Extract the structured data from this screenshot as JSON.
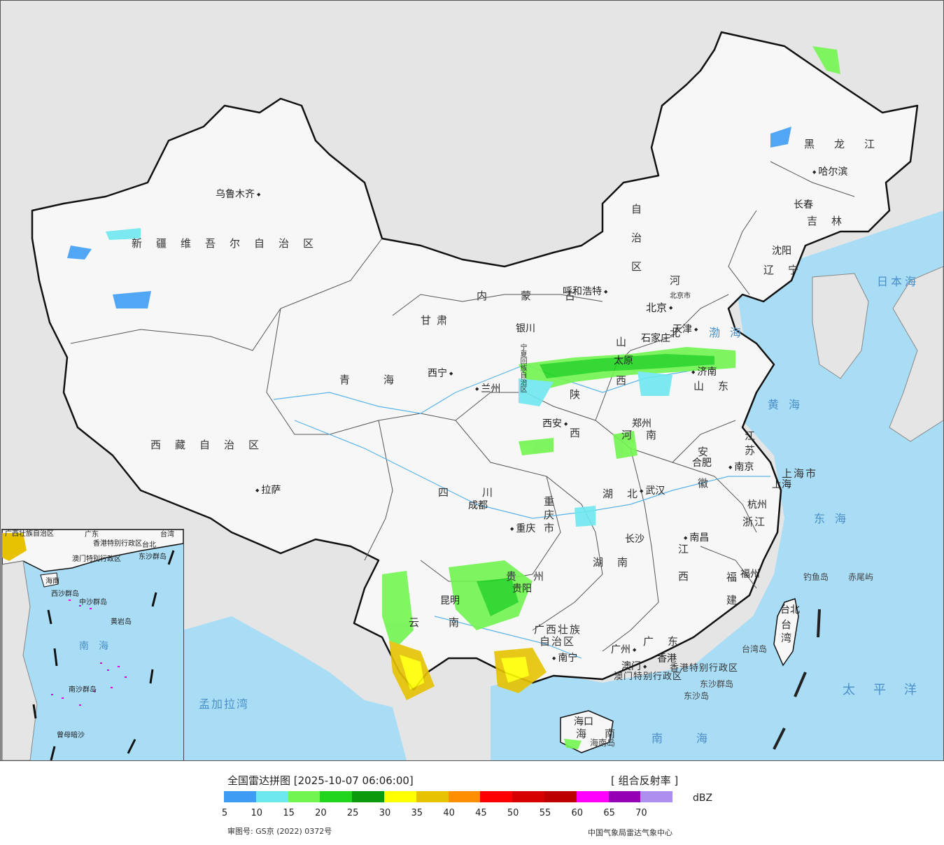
{
  "map": {
    "colors": {
      "sea": "#a9dcf5",
      "land": "#f7f7f7",
      "foreign": "#e5e5e5",
      "border": "#111111"
    },
    "regions": [
      {
        "id": "xinjiang",
        "text": "新疆维吾尔自治区"
      },
      {
        "id": "xizang",
        "text": "西藏自治区"
      },
      {
        "id": "qinghai",
        "text": "青海"
      },
      {
        "id": "gansu",
        "text": "甘肃"
      },
      {
        "id": "neimenggu",
        "text": "内蒙古"
      },
      {
        "id": "neimenggu-v",
        "text": "自治区"
      },
      {
        "id": "heilongjiang",
        "text": "黑龙江"
      },
      {
        "id": "jilin",
        "text": "吉林"
      },
      {
        "id": "liaoning",
        "text": "辽宁"
      },
      {
        "id": "hebei",
        "text": "河北"
      },
      {
        "id": "shanxi",
        "text": "山西"
      },
      {
        "id": "shandong",
        "text": "山东"
      },
      {
        "id": "shaanxi",
        "text": "陕西"
      },
      {
        "id": "henan",
        "text": "河南"
      },
      {
        "id": "ningxia",
        "text": "宁夏回族自治区"
      },
      {
        "id": "sichuan",
        "text": "四川"
      },
      {
        "id": "chongqing",
        "text": "重庆市"
      },
      {
        "id": "hubei",
        "text": "湖北"
      },
      {
        "id": "hunan",
        "text": "湖南"
      },
      {
        "id": "anhui",
        "text": "安徽"
      },
      {
        "id": "jiangsu",
        "text": "江苏"
      },
      {
        "id": "zhejiang",
        "text": "浙江"
      },
      {
        "id": "jiangxi",
        "text": "江西"
      },
      {
        "id": "fujian",
        "text": "福建"
      },
      {
        "id": "guizhou",
        "text": "贵州"
      },
      {
        "id": "yunnan",
        "text": "云南"
      },
      {
        "id": "guangxi1",
        "text": "广西壮族"
      },
      {
        "id": "guangxi2",
        "text": "自治区"
      },
      {
        "id": "guangdong",
        "text": "广东"
      },
      {
        "id": "hainan",
        "text": "海南"
      },
      {
        "id": "taiwan",
        "text": "台湾"
      },
      {
        "id": "shanghai",
        "text": "上海市"
      },
      {
        "id": "hk",
        "text": "香港特别行政区"
      },
      {
        "id": "macao",
        "text": "澳门特别行政区"
      }
    ],
    "cities": [
      {
        "id": "urumqi",
        "text": "乌鲁木齐"
      },
      {
        "id": "lhasa",
        "text": "拉萨"
      },
      {
        "id": "xining",
        "text": "西宁"
      },
      {
        "id": "lanzhou",
        "text": "兰州"
      },
      {
        "id": "yinchuan",
        "text": "银川"
      },
      {
        "id": "hohhot",
        "text": "呼和浩特"
      },
      {
        "id": "beijing",
        "text": "北京"
      },
      {
        "id": "beijingshi",
        "text": "北京市"
      },
      {
        "id": "tianjin",
        "text": "天津"
      },
      {
        "id": "shijiazhuang",
        "text": "石家庄"
      },
      {
        "id": "taiyuan",
        "text": "太原"
      },
      {
        "id": "jinan",
        "text": "济南"
      },
      {
        "id": "zhengzhou",
        "text": "郑州"
      },
      {
        "id": "xian",
        "text": "西安"
      },
      {
        "id": "hefei",
        "text": "合肥"
      },
      {
        "id": "nanjing",
        "text": "南京"
      },
      {
        "id": "shanghai-c",
        "text": "上海"
      },
      {
        "id": "hangzhou",
        "text": "杭州"
      },
      {
        "id": "wuhan",
        "text": "武汉"
      },
      {
        "id": "chengdu",
        "text": "成都"
      },
      {
        "id": "chongqing-c",
        "text": "重庆"
      },
      {
        "id": "changsha",
        "text": "长沙"
      },
      {
        "id": "nanchang",
        "text": "南昌"
      },
      {
        "id": "fuzhou",
        "text": "福州"
      },
      {
        "id": "guiyang",
        "text": "贵阳"
      },
      {
        "id": "kunming",
        "text": "昆明"
      },
      {
        "id": "nanning",
        "text": "南宁"
      },
      {
        "id": "guangzhou",
        "text": "广州"
      },
      {
        "id": "hongkong",
        "text": "香港"
      },
      {
        "id": "aomen",
        "text": "澳门"
      },
      {
        "id": "haikou",
        "text": "海口"
      },
      {
        "id": "taibei",
        "text": "台北"
      },
      {
        "id": "shenyang",
        "text": "沈阳"
      },
      {
        "id": "changchun",
        "text": "长春"
      },
      {
        "id": "harbin",
        "text": "哈尔滨"
      }
    ],
    "seas": [
      {
        "id": "bohai",
        "text": "渤海"
      },
      {
        "id": "huanghai",
        "text": "黄海"
      },
      {
        "id": "donghai",
        "text": "东海"
      },
      {
        "id": "nanhai",
        "text": "南海"
      },
      {
        "id": "taipingyang",
        "text": "太平洋"
      },
      {
        "id": "ribenhai",
        "text": "日本海"
      },
      {
        "id": "mengjiala",
        "text": "孟加拉湾"
      }
    ],
    "islands": [
      {
        "id": "diaoyu",
        "text": "钓鱼岛"
      },
      {
        "id": "chiwei",
        "text": "赤尾屿"
      },
      {
        "id": "dongsha-q",
        "text": "东沙群岛"
      },
      {
        "id": "dongsha-d",
        "text": "东沙岛"
      },
      {
        "id": "taiwan-d",
        "text": "台湾岛"
      },
      {
        "id": "hainan-d",
        "text": "海南岛"
      }
    ],
    "inset": [
      {
        "id": "i-guangxi",
        "text": "广西壮族自治区"
      },
      {
        "id": "i-guangdong",
        "text": "广东"
      },
      {
        "id": "i-hk",
        "text": "香港特别行政区"
      },
      {
        "id": "i-macao",
        "text": "澳门特别行政区"
      },
      {
        "id": "i-dongsha",
        "text": "东沙群岛"
      },
      {
        "id": "i-hainan",
        "text": "海南"
      },
      {
        "id": "i-xisha",
        "text": "西沙群岛"
      },
      {
        "id": "i-zhongsha",
        "text": "中沙群岛"
      },
      {
        "id": "i-huangyan",
        "text": "黄岩岛"
      },
      {
        "id": "i-nanhai",
        "text": "南海"
      },
      {
        "id": "i-nansha",
        "text": "南沙群岛"
      },
      {
        "id": "i-zengmu",
        "text": "曾母暗沙"
      },
      {
        "id": "i-taiwan",
        "text": "台湾"
      },
      {
        "id": "i-taibei",
        "text": "台北"
      }
    ]
  },
  "legend": {
    "title": "全国雷达拼图 [2025-10-07 06:06:00]",
    "product": "[ 组合反射率 ]",
    "unit": "dBZ",
    "swatches": [
      "#3e9cf4",
      "#6ee8ef",
      "#72f550",
      "#21d51f",
      "#0c9a0a",
      "#ffff00",
      "#e6c200",
      "#ff8e00",
      "#ff0000",
      "#d70000",
      "#bc0000",
      "#ff00ff",
      "#9500b4",
      "#ad8fef"
    ],
    "ticks": [
      "5",
      "10",
      "15",
      "20",
      "25",
      "30",
      "35",
      "40",
      "45",
      "50",
      "55",
      "60",
      "65",
      "70"
    ],
    "review_no": "审图号: GS京 (2022) 0372号",
    "org": "中国气象局雷达气象中心"
  }
}
